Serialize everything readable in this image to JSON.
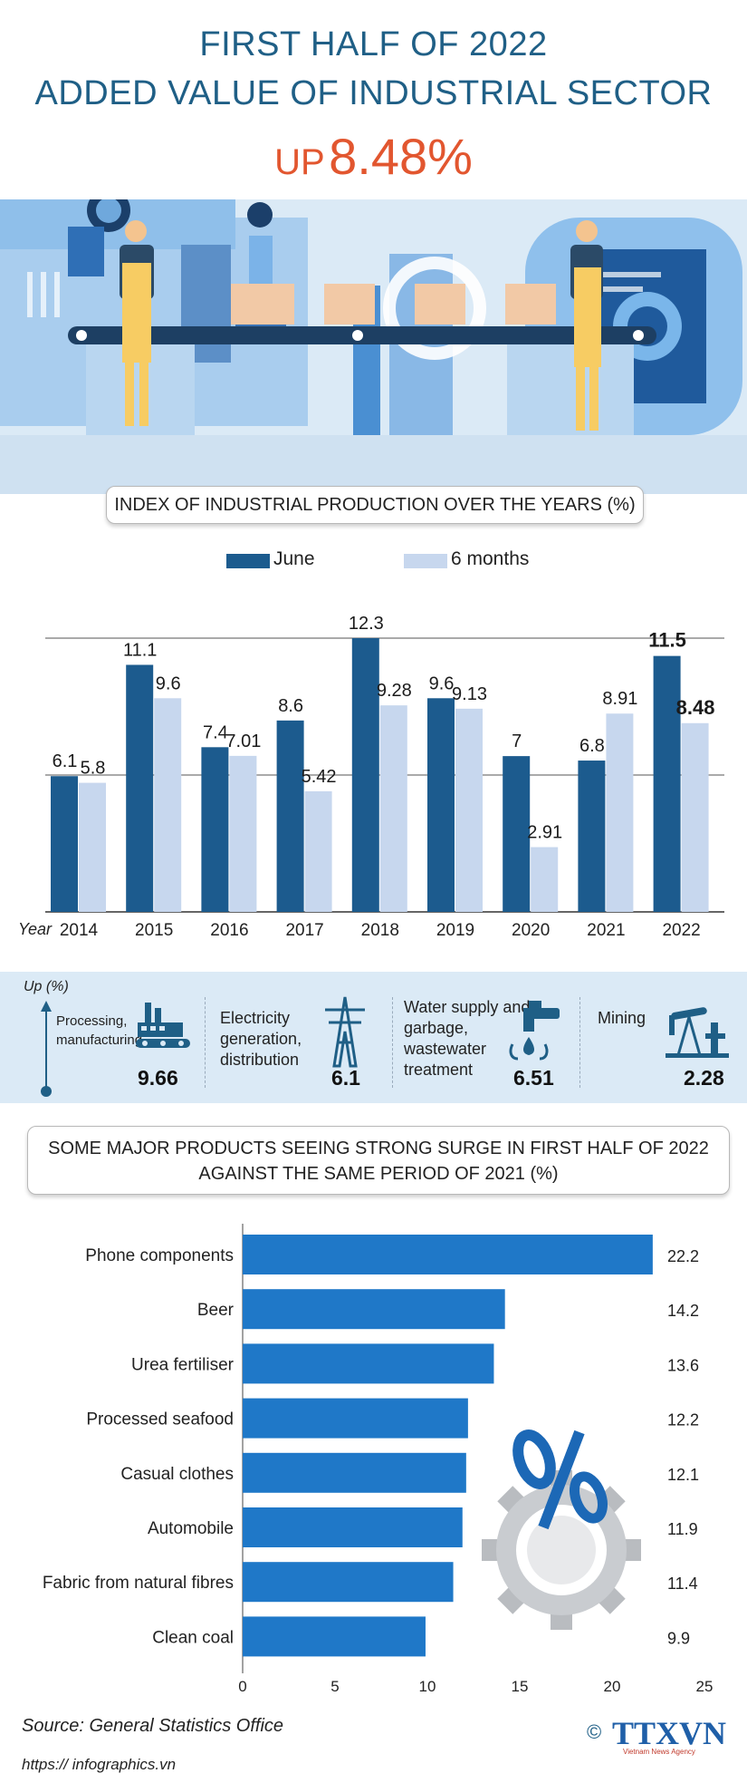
{
  "header": {
    "line1": "FIRST HALF OF 2022",
    "line2": "ADDED VALUE OF INDUSTRIAL SECTOR",
    "up_label": "UP",
    "up_value": "8.48%"
  },
  "colors": {
    "title": "#1f5f86",
    "accent": "#e2562f",
    "june": "#1c5b8e",
    "six_months": "#c7d7ee",
    "product_bar": "#1f78c8",
    "band": "#dbeaf6"
  },
  "chart_index": {
    "title": "INDEX OF INDUSTRIAL PRODUCTION OVER THE YEARS (%)",
    "legend": [
      "June",
      "6 months"
    ],
    "x_axis_label": "Year"
  },
  "chart_products": {
    "title_line1": "SOME MAJOR PRODUCTS SEEING STRONG SURGE IN FIRST HALF OF 2022",
    "title_line2": "AGAINST THE SAME PERIOD OF 2021 (%)"
  },
  "chart_data": [
    {
      "type": "bar",
      "title": "INDEX OF INDUSTRIAL PRODUCTION OVER THE YEARS (%)",
      "xlabel": "Year",
      "categories": [
        "2014",
        "2015",
        "2016",
        "2017",
        "2018",
        "2019",
        "2020",
        "2021",
        "2022"
      ],
      "series": [
        {
          "name": "June",
          "values": [
            6.1,
            11.1,
            7.4,
            8.6,
            12.3,
            9.6,
            7,
            6.8,
            11.5
          ]
        },
        {
          "name": "6 months",
          "values": [
            5.8,
            9.6,
            7.01,
            5.42,
            9.28,
            9.13,
            2.91,
            8.91,
            8.48
          ]
        }
      ],
      "value_labels": {
        "June": [
          "6.1",
          "11.1",
          "7.4",
          "8.6",
          "12.3",
          "9.6",
          "7",
          "6.8",
          "11.5"
        ],
        "6 months": [
          "5.8",
          "9.6",
          "7.01",
          "5.42",
          "9.28",
          "9.13",
          "2.91",
          "8.91",
          "8.48"
        ]
      },
      "ylim": [
        0,
        12.3
      ],
      "grid": true,
      "legend_position": "top"
    },
    {
      "type": "bar",
      "orientation": "horizontal",
      "title": "SOME MAJOR PRODUCTS SEEING STRONG SURGE IN FIRST HALF OF 2022 AGAINST THE SAME PERIOD OF 2021 (%)",
      "categories": [
        "Phone components",
        "Beer",
        "Urea fertiliser",
        "Processed seafood",
        "Casual clothes",
        "Automobile",
        "Fabric from natural fibres",
        "Clean coal"
      ],
      "values": [
        22.2,
        14.2,
        13.6,
        12.2,
        12.1,
        11.9,
        11.4,
        9.9
      ],
      "value_labels": [
        "22.2",
        "14.2",
        "13.6",
        "12.2",
        "12.1",
        "11.9",
        "11.4",
        "9.9"
      ],
      "x_ticks": [
        "0",
        "5",
        "10",
        "15",
        "20",
        "25"
      ],
      "xlim": [
        0,
        25
      ],
      "grid": false
    }
  ],
  "industries": {
    "up_label": "Up (%)",
    "items": [
      {
        "label": "Processing, manufacturing",
        "value": "9.66",
        "icon": "factory-icon"
      },
      {
        "label": "Electricity generation, distribution",
        "value": "6.1",
        "icon": "power-tower-icon"
      },
      {
        "label": "Water supply and garbage, wastewater treatment",
        "value": "6.51",
        "icon": "water-tap-icon"
      },
      {
        "label": "Mining",
        "value": "2.28",
        "icon": "oil-pump-icon"
      }
    ]
  },
  "footer": {
    "source": "Source: General Statistics Office",
    "url": "https:// infographics.vn",
    "copyright": "©",
    "logo_text": "TTXVN",
    "logo_sub": "Vietnam News Agency"
  }
}
